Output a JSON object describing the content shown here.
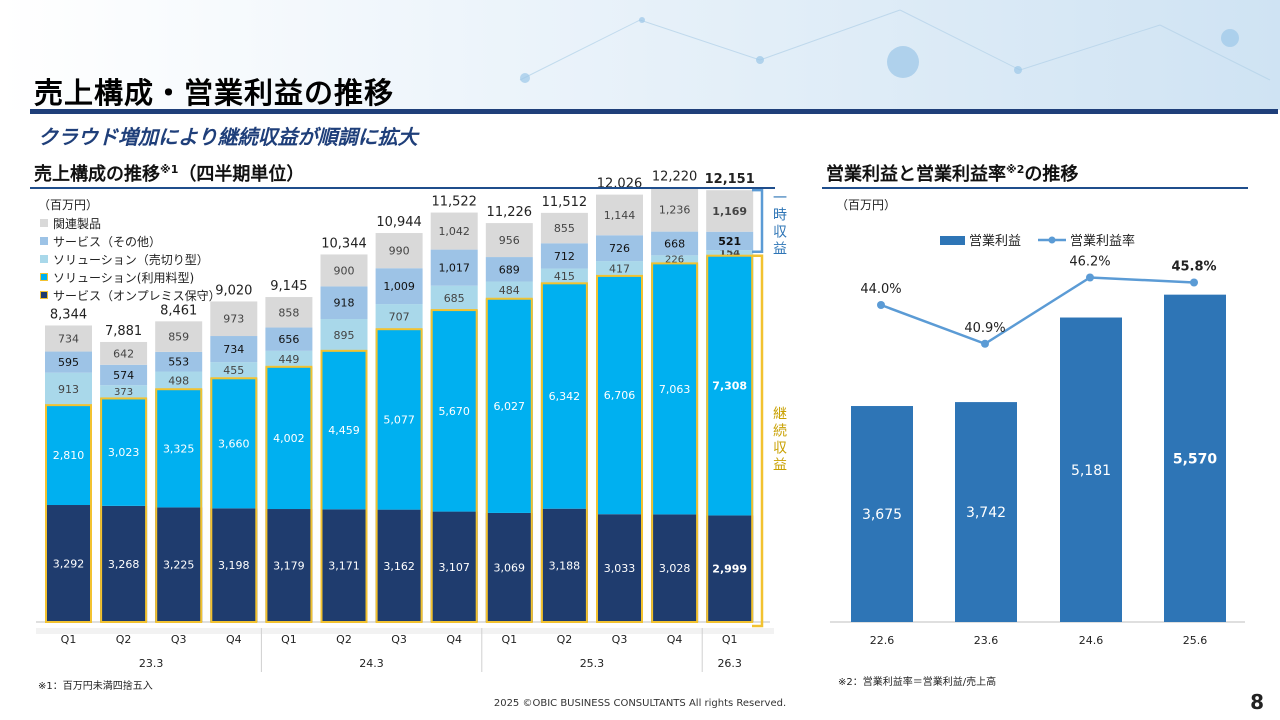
{
  "page": {
    "title": "売上構成・営業利益の推移",
    "subtitle": "クラウド増加により継続収益が順調に拡大",
    "footer": "2025 ©OBIC BUSINESS CONSULTANTS All rights Reserved.",
    "page_number": "8"
  },
  "left": {
    "title_main": "売上構成の推移",
    "title_sup": "※1",
    "title_tail": "（四半期単位）",
    "unit": "（百万円）",
    "note": "※1：百万円未満四捨五入",
    "bracket_onetime_label": "一時収益",
    "bracket_recurring_label": "継続収益"
  },
  "right": {
    "title_main": "営業利益と営業利益率",
    "title_sup": "※2",
    "title_tail": "の推移",
    "unit": "（百万円）",
    "note": "※2：営業利益率＝営業利益/売上高"
  },
  "colors": {
    "related": "#d9d9d9",
    "service_other": "#9dc3e6",
    "solution_sale": "#a9d8ea",
    "solution_subscription": "#00b0f0",
    "service_onprem": "#1f3c6e",
    "recurring_border": "#f2c230",
    "onetime_bracket": "#5b9bd5",
    "op_bar": "#2e75b6",
    "op_line": "#5b9bd5",
    "title_rule": "#1f3f7a"
  },
  "chart_data": [
    {
      "type": "bar",
      "stacked": true,
      "categories": [
        "Q1",
        "Q2",
        "Q3",
        "Q4",
        "Q1",
        "Q2",
        "Q3",
        "Q4",
        "Q1",
        "Q2",
        "Q3",
        "Q4",
        "Q1"
      ],
      "fiscal_years": [
        {
          "label": "23.3",
          "from": 0,
          "to": 3
        },
        {
          "label": "24.3",
          "from": 4,
          "to": 7
        },
        {
          "label": "25.3",
          "from": 8,
          "to": 11
        },
        {
          "label": "26.3",
          "from": 12,
          "to": 12
        }
      ],
      "series": [
        {
          "name": "サービス（オンプレミス保守）",
          "key": "service_onprem",
          "values": [
            3292,
            3268,
            3225,
            3198,
            3179,
            3171,
            3162,
            3107,
            3069,
            3188,
            3033,
            3028,
            2999
          ]
        },
        {
          "name": "ソリューション(利用料型)",
          "key": "solution_subscription",
          "values": [
            2810,
            3023,
            3325,
            3660,
            4002,
            4459,
            5077,
            5670,
            6027,
            6342,
            6706,
            7063,
            7308
          ]
        },
        {
          "name": "ソリューション（売切り型）",
          "key": "solution_sale",
          "values": [
            913,
            373,
            498,
            455,
            449,
            895,
            707,
            685,
            484,
            415,
            417,
            226,
            154
          ]
        },
        {
          "name": "サービス（その他）",
          "key": "service_other",
          "values": [
            595,
            574,
            553,
            734,
            656,
            918,
            1009,
            1017,
            689,
            712,
            726,
            668,
            521
          ]
        },
        {
          "name": "関連製品",
          "key": "related",
          "values": [
            734,
            642,
            859,
            973,
            858,
            900,
            990,
            1042,
            956,
            855,
            1144,
            1236,
            1169
          ]
        }
      ],
      "totals": [
        8344,
        7881,
        8461,
        9020,
        9145,
        10344,
        10944,
        11522,
        11226,
        11512,
        12026,
        12220,
        12151
      ],
      "legend_order": [
        "関連製品",
        "サービス（その他）",
        "ソリューション（売切り型）",
        "ソリューション(利用料型)",
        "サービス（オンプレミス保守）"
      ],
      "legend_position": "top-left",
      "ylim": [
        0,
        13000
      ],
      "highlight_last": true
    },
    {
      "type": "bar+line",
      "categories": [
        "22.6",
        "23.6",
        "24.6",
        "25.6"
      ],
      "series": [
        {
          "name": "営業利益",
          "kind": "bar",
          "values": [
            3675,
            3742,
            5181,
            5570
          ]
        },
        {
          "name": "営業利益率",
          "kind": "line",
          "values": [
            44.0,
            40.9,
            46.2,
            45.8
          ],
          "labels": [
            "44.0%",
            "40.9%",
            "46.2%",
            "45.8%"
          ]
        }
      ],
      "legend_position": "top",
      "ylim": [
        0,
        6500
      ],
      "highlight_last": true
    }
  ]
}
